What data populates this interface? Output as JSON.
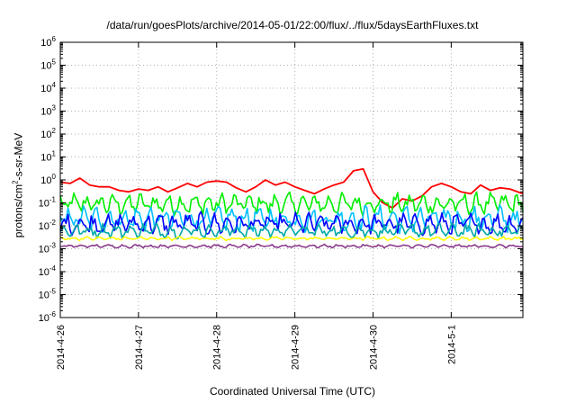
{
  "chart_data": {
    "type": "line",
    "title": "/data/run/goesPlots/archive/2014-05-01/22:00/flux/../flux/5daysEarthFluxes.txt",
    "xlabel": "Coordinated Universal Time (UTC)",
    "ylabel": {
      "base": "protons/cm",
      "sup": "2",
      "rest": "-s-sr-MeV"
    },
    "yscale": "log",
    "ylim": [
      1e-06,
      1000000.0
    ],
    "y_ticks": [
      {
        "base": "10",
        "exp": "-6",
        "value": 1e-06
      },
      {
        "base": "10",
        "exp": "-5",
        "value": 1e-05
      },
      {
        "base": "10",
        "exp": "-4",
        "value": 0.0001
      },
      {
        "base": "10",
        "exp": "-3",
        "value": 0.001
      },
      {
        "base": "10",
        "exp": "-2",
        "value": 0.01
      },
      {
        "base": "10",
        "exp": "-1",
        "value": 0.1
      },
      {
        "base": "10",
        "exp": "0",
        "value": 1
      },
      {
        "base": "10",
        "exp": "1",
        "value": 10
      },
      {
        "base": "10",
        "exp": "2",
        "value": 100
      },
      {
        "base": "10",
        "exp": "3",
        "value": 1000
      },
      {
        "base": "10",
        "exp": "4",
        "value": 10000
      },
      {
        "base": "10",
        "exp": "5",
        "value": 100000
      },
      {
        "base": "10",
        "exp": "6",
        "value": 1000000
      }
    ],
    "xlim": [
      "2014-04-26T00:00",
      "2014-05-01T22:00"
    ],
    "x_ticks": [
      "2014-4-26",
      "2014-4-27",
      "2014-4-28",
      "2014-4-29",
      "2014-4-30",
      "2014-5-1"
    ],
    "grid": true,
    "series": [
      {
        "color": "#ff0000",
        "x": [
          "2014-04-26T00:00",
          "2014-04-26T03:00",
          "2014-04-26T06:00",
          "2014-04-26T09:00",
          "2014-04-26T12:00",
          "2014-04-26T15:00",
          "2014-04-26T18:00",
          "2014-04-26T21:00",
          "2014-04-27T00:00",
          "2014-04-27T03:00",
          "2014-04-27T06:00",
          "2014-04-27T09:00",
          "2014-04-27T12:00",
          "2014-04-27T15:00",
          "2014-04-27T18:00",
          "2014-04-27T21:00",
          "2014-04-28T00:00",
          "2014-04-28T03:00",
          "2014-04-28T06:00",
          "2014-04-28T09:00",
          "2014-04-28T12:00",
          "2014-04-28T15:00",
          "2014-04-28T18:00",
          "2014-04-28T21:00",
          "2014-04-29T00:00",
          "2014-04-29T03:00",
          "2014-04-29T06:00",
          "2014-04-29T09:00",
          "2014-04-29T12:00",
          "2014-04-29T15:00",
          "2014-04-29T18:00",
          "2014-04-29T21:00",
          "2014-04-30T00:00",
          "2014-04-30T03:00",
          "2014-04-30T06:00",
          "2014-04-30T09:00",
          "2014-04-30T12:00",
          "2014-04-30T15:00",
          "2014-04-30T18:00",
          "2014-04-30T21:00",
          "2014-05-01T00:00",
          "2014-05-01T03:00",
          "2014-05-01T06:00",
          "2014-05-01T09:00",
          "2014-05-01T12:00",
          "2014-05-01T15:00",
          "2014-05-01T18:00",
          "2014-05-01T22:00"
        ],
        "values": [
          0.8,
          0.7,
          1.2,
          0.6,
          0.5,
          0.5,
          0.35,
          0.3,
          0.4,
          0.35,
          0.5,
          0.3,
          0.45,
          0.7,
          0.5,
          0.8,
          0.9,
          0.8,
          0.45,
          0.3,
          0.5,
          1.0,
          0.6,
          0.8,
          0.5,
          0.35,
          0.25,
          0.4,
          0.6,
          0.8,
          2.5,
          3.0,
          0.3,
          0.1,
          0.06,
          0.15,
          0.12,
          0.2,
          0.5,
          0.7,
          0.5,
          0.3,
          0.25,
          0.6,
          0.35,
          0.45,
          0.4,
          0.25
        ]
      },
      {
        "color": "#00ee00",
        "level": 0.09,
        "amp": 0.45
      },
      {
        "color": "#00c0ff",
        "level": 0.02,
        "amp": 0.55
      },
      {
        "color": "#0000ff",
        "level": 0.012,
        "amp": 0.45
      },
      {
        "color": "#00a8a8",
        "level": 0.006,
        "amp": 0.3
      },
      {
        "color": "#ffff00",
        "level": 0.0028,
        "amp": 0.08
      },
      {
        "color": "#8b3a8b",
        "level": 0.0013,
        "amp": 0.07
      }
    ]
  }
}
